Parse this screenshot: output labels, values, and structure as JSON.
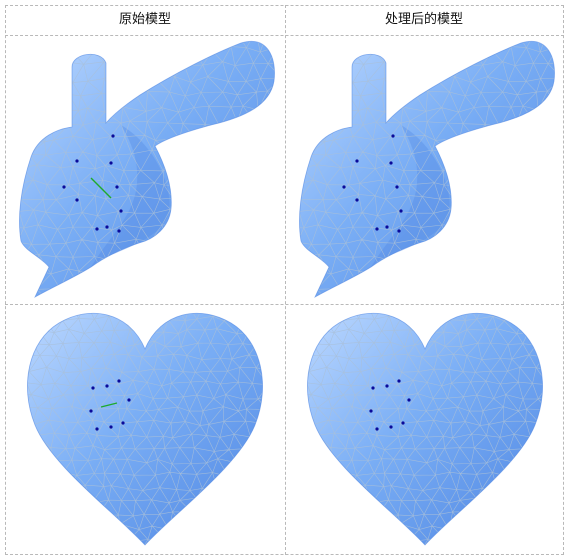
{
  "headers": {
    "original": "原始模型",
    "processed": "处理后的模型"
  },
  "rows": [
    {
      "model": "bunny",
      "original": {
        "marked_vertices": [
          [
            108,
            131
          ],
          [
            72,
            156
          ],
          [
            106,
            158
          ],
          [
            59,
            182
          ],
          [
            112,
            182
          ],
          [
            72,
            195
          ],
          [
            116,
            206
          ],
          [
            92,
            224
          ],
          [
            102,
            222
          ],
          [
            114,
            226
          ]
        ],
        "highlight_edge": [
          [
            86,
            173
          ],
          [
            106,
            193
          ]
        ]
      },
      "processed": {
        "marked_vertices": [
          [
            108,
            131
          ],
          [
            72,
            156
          ],
          [
            106,
            158
          ],
          [
            59,
            182
          ],
          [
            112,
            182
          ],
          [
            72,
            195
          ],
          [
            116,
            206
          ],
          [
            92,
            224
          ],
          [
            102,
            222
          ],
          [
            114,
            226
          ]
        ],
        "highlight_edge": null
      }
    },
    {
      "model": "heart",
      "original": {
        "marked_vertices": [
          [
            88,
            383
          ],
          [
            102,
            381
          ],
          [
            114,
            376
          ],
          [
            86,
            406
          ],
          [
            124,
            395
          ],
          [
            92,
            424
          ],
          [
            106,
            422
          ],
          [
            118,
            418
          ]
        ],
        "highlight_edge": [
          [
            96,
            402
          ],
          [
            112,
            398
          ]
        ]
      },
      "processed": {
        "marked_vertices": [
          [
            88,
            383
          ],
          [
            102,
            381
          ],
          [
            114,
            376
          ],
          [
            86,
            406
          ],
          [
            124,
            395
          ],
          [
            92,
            424
          ],
          [
            106,
            422
          ],
          [
            118,
            418
          ]
        ],
        "highlight_edge": null
      }
    }
  ],
  "colors": {
    "mesh_fill": "#7aaef5",
    "mesh_shade": "#4f86e2",
    "mesh_highlight": "#bcd8ff",
    "wire": "#a9bfd8",
    "vertex": "#0a0a9a",
    "edge": "#1faa2a",
    "grid": "#b9b9b9"
  }
}
